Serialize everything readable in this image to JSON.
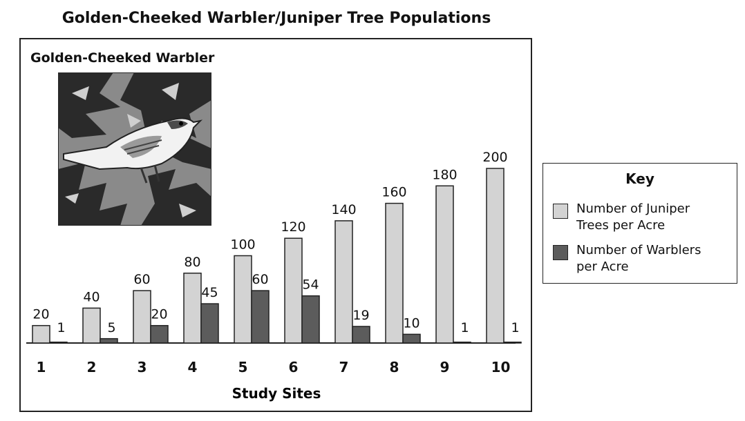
{
  "title": "Golden-Cheeked Warbler/Juniper Tree Populations",
  "inset_title": "Golden-Cheeked Warbler",
  "key": {
    "title": "Key",
    "items": [
      {
        "lines": [
          "Number of Juniper",
          "Trees per Acre"
        ],
        "color": "#d3d3d3"
      },
      {
        "lines": [
          "Number of Warblers",
          "per Acre"
        ],
        "color": "#5c5c5c"
      }
    ]
  },
  "chart_data": {
    "type": "bar",
    "title": "Golden-Cheeked Warbler/Juniper Tree Populations",
    "xlabel": "Study Sites",
    "ylabel": "",
    "categories": [
      "1",
      "2",
      "3",
      "4",
      "5",
      "6",
      "7",
      "8",
      "9",
      "10"
    ],
    "series": [
      {
        "name": "Number of Juniper Trees per Acre",
        "color": "#d3d3d3",
        "values": [
          20,
          40,
          60,
          80,
          100,
          120,
          140,
          160,
          180,
          200
        ]
      },
      {
        "name": "Number of Warblers per Acre",
        "color": "#5c5c5c",
        "values": [
          1,
          5,
          20,
          45,
          60,
          54,
          19,
          10,
          1,
          1
        ]
      }
    ],
    "ylim": [
      0,
      200
    ],
    "grid": false,
    "legend": "right"
  }
}
